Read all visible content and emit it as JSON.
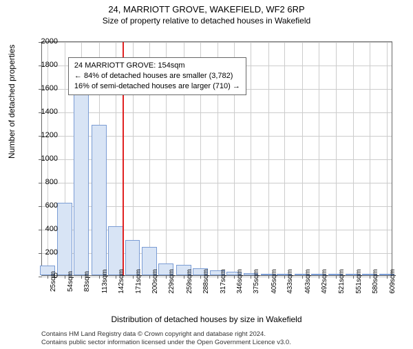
{
  "title": "24, MARRIOTT GROVE, WAKEFIELD, WF2 6RP",
  "subtitle": "Size of property relative to detached houses in Wakefield",
  "xlabel": "Distribution of detached houses by size in Wakefield",
  "ylabel": "Number of detached properties",
  "chart": {
    "type": "histogram",
    "background_color": "#ffffff",
    "grid_color": "#cccccc",
    "bar_fill": "#d8e4f5",
    "bar_border": "#7a9cd4",
    "ref_line_color": "#e02020",
    "ref_line_sqm": 154,
    "ylim": [
      0,
      2000
    ],
    "ytick_step": 200,
    "xlim_sqm": [
      15,
      620
    ],
    "xtick_labels": [
      "25sqm",
      "54sqm",
      "83sqm",
      "113sqm",
      "142sqm",
      "171sqm",
      "200sqm",
      "229sqm",
      "259sqm",
      "288sqm",
      "317sqm",
      "346sqm",
      "375sqm",
      "405sqm",
      "433sqm",
      "463sqm",
      "492sqm",
      "521sqm",
      "551sqm",
      "580sqm",
      "609sqm"
    ],
    "xtick_sqm": [
      25,
      54,
      83,
      113,
      142,
      171,
      200,
      229,
      259,
      288,
      317,
      346,
      375,
      405,
      433,
      463,
      492,
      521,
      551,
      580,
      609
    ],
    "bars": [
      {
        "x_sqm": 25,
        "count": 80
      },
      {
        "x_sqm": 54,
        "count": 620
      },
      {
        "x_sqm": 83,
        "count": 1590
      },
      {
        "x_sqm": 113,
        "count": 1280
      },
      {
        "x_sqm": 142,
        "count": 420
      },
      {
        "x_sqm": 171,
        "count": 300
      },
      {
        "x_sqm": 200,
        "count": 240
      },
      {
        "x_sqm": 229,
        "count": 100
      },
      {
        "x_sqm": 259,
        "count": 90
      },
      {
        "x_sqm": 288,
        "count": 60
      },
      {
        "x_sqm": 317,
        "count": 40
      },
      {
        "x_sqm": 346,
        "count": 30
      },
      {
        "x_sqm": 375,
        "count": 20
      },
      {
        "x_sqm": 405,
        "count": 12
      },
      {
        "x_sqm": 433,
        "count": 8
      },
      {
        "x_sqm": 463,
        "count": 6
      },
      {
        "x_sqm": 492,
        "count": 4
      },
      {
        "x_sqm": 521,
        "count": 4
      },
      {
        "x_sqm": 551,
        "count": 3
      },
      {
        "x_sqm": 580,
        "count": 3
      },
      {
        "x_sqm": 609,
        "count": 2
      }
    ],
    "bar_width_sqm": 26
  },
  "annotation": {
    "line1": "24 MARRIOTT GROVE: 154sqm",
    "line2": "← 84% of detached houses are smaller (3,782)",
    "line3": "16% of semi-detached houses are larger (710) →",
    "pos_sqm": 60,
    "pos_count": 1870
  },
  "footer": {
    "line1": "Contains HM Land Registry data © Crown copyright and database right 2024.",
    "line2": "Contains public sector information licensed under the Open Government Licence v3.0."
  }
}
